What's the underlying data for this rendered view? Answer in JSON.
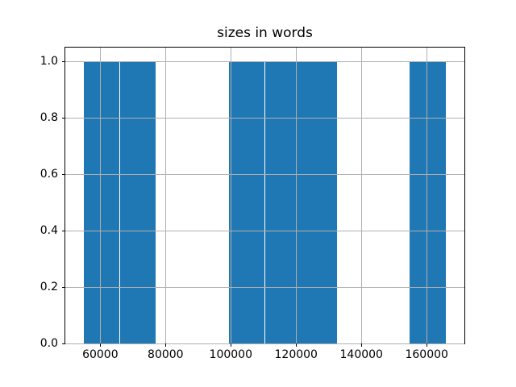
{
  "chart_data": {
    "type": "bar",
    "subtype": "histogram",
    "title": "sizes in words",
    "xlabel": "",
    "ylabel": "",
    "bin_edges": [
      54850,
      65965,
      77080,
      88195,
      99310,
      110425,
      121540,
      132655,
      143770,
      154885,
      166000
    ],
    "counts": [
      1,
      1,
      0,
      0,
      1,
      1,
      1,
      0,
      0,
      1
    ],
    "bars": [
      {
        "x0": 54850,
        "x1": 77080,
        "height": 1.0
      },
      {
        "x0": 99310,
        "x1": 132655,
        "height": 1.0
      },
      {
        "x0": 154885,
        "x1": 166000,
        "height": 1.0
      }
    ],
    "xlim": [
      49292,
      171558
    ],
    "ylim": [
      0,
      1.05
    ],
    "xticks": [
      {
        "value": 60000,
        "label": "60000"
      },
      {
        "value": 80000,
        "label": "80000"
      },
      {
        "value": 100000,
        "label": "100000"
      },
      {
        "value": 120000,
        "label": "120000"
      },
      {
        "value": 140000,
        "label": "140000"
      },
      {
        "value": 160000,
        "label": "160000"
      }
    ],
    "yticks": [
      {
        "value": 0.0,
        "label": "0.0"
      },
      {
        "value": 0.2,
        "label": "0.2"
      },
      {
        "value": 0.4,
        "label": "0.4"
      },
      {
        "value": 0.6,
        "label": "0.6"
      },
      {
        "value": 0.8,
        "label": "0.8"
      },
      {
        "value": 1.0,
        "label": "1.0"
      }
    ],
    "grid": true,
    "grid_over_bars": true,
    "legend": null,
    "bar_color": "#1f77b4",
    "grid_color": "#b0b0b0",
    "spine_color": "#000000",
    "text_color": "#000000",
    "background_color": "#ffffff"
  }
}
